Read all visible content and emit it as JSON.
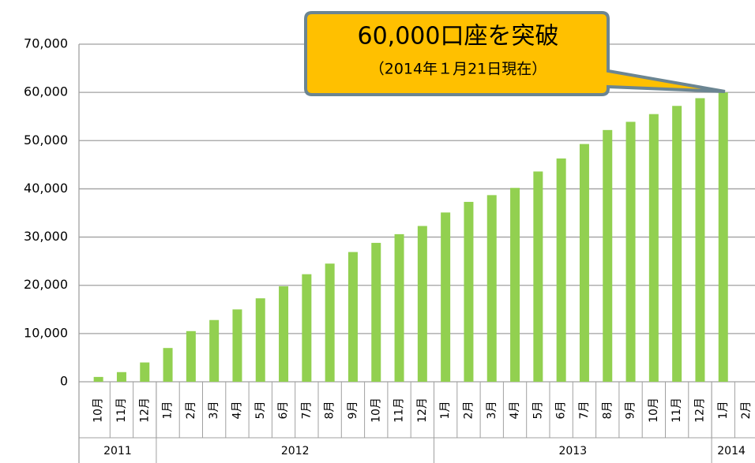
{
  "chart_data": {
    "type": "bar",
    "annotation": {
      "title": "60,000口座を突破",
      "subtitle": "（2014年１月21日現在）"
    },
    "categories": [
      "10月",
      "11月",
      "12月",
      "1月",
      "2月",
      "3月",
      "4月",
      "5月",
      "6月",
      "7月",
      "8月",
      "9月",
      "10月",
      "11月",
      "12月",
      "1月",
      "2月",
      "3月",
      "4月",
      "5月",
      "6月",
      "7月",
      "8月",
      "9月",
      "10月",
      "11月",
      "12月",
      "1月",
      "2月"
    ],
    "category_groups": [
      "2011",
      "2012",
      "2013",
      "2014"
    ],
    "values": [
      1000,
      2000,
      4000,
      7000,
      10500,
      12800,
      15000,
      17300,
      19800,
      22300,
      24500,
      26900,
      28800,
      30600,
      32300,
      35100,
      37300,
      38700,
      40200,
      43600,
      46300,
      49300,
      52200,
      53900,
      55500,
      57200,
      58800,
      60000,
      null
    ],
    "color": "#92d050",
    "ylim": [
      0,
      70000
    ],
    "yticks": [
      0,
      {
        "value": 10000,
        "label": "10,000"
      },
      {
        "value": 20000,
        "label": "20,000"
      },
      {
        "value": 30000,
        "label": "30,000"
      },
      {
        "value": 40000,
        "label": "40,000"
      },
      {
        "value": 50000,
        "label": "50,000"
      },
      {
        "value": 60000,
        "label": "60,000"
      },
      {
        "value": 70000,
        "label": "70,000"
      }
    ],
    "grid": true
  }
}
